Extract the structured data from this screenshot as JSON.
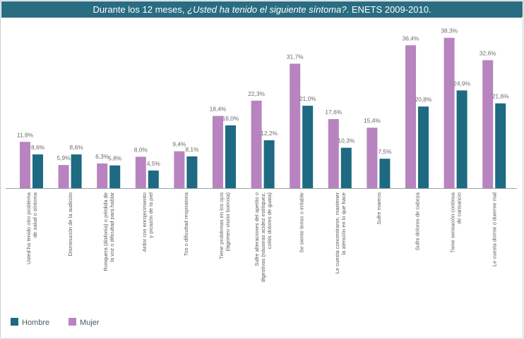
{
  "title": {
    "before": "Durante los 12 meses, ",
    "question": "¿Usted ha tenido el siguiente síntoma?",
    "after": ". ENETS 2009-2010."
  },
  "colors": {
    "mujer": "#b884c0",
    "hombre": "#1d6a82",
    "title_bg": "#2a6d82"
  },
  "legend": [
    {
      "name": "Hombre",
      "color": "#1d6a82"
    },
    {
      "name": "Mujer",
      "color": "#b884c0"
    }
  ],
  "chart_data": {
    "type": "bar",
    "title": "Durante los 12 meses, ¿Usted ha tenido el siguiente síntoma?. ENETS 2009-2010.",
    "xlabel": "",
    "ylabel": "",
    "ylim": [
      0,
      40
    ],
    "grid": false,
    "legend_position": "bottom-left",
    "categories": [
      [
        "Usted ha tenido otro problema",
        "de salud o síntoma"
      ],
      [
        "Disminución de la audición"
      ],
      [
        "Ronquera (disfonía) o pérdida de",
        "la voz o dificultad para hablar"
      ],
      [
        "Ardor con enrojecimiento",
        "y picazón de la piel"
      ],
      [
        "Tos o dificultad respiratoria"
      ],
      [
        "Tiene problemas en los ojos",
        "(lágrimeo visión borrosa)"
      ],
      [
        "Sufre alteraciones del apetito o",
        "digestivas (náuseas acidez estitiquez,",
        "colitis dolores de guata)"
      ],
      [
        "Se siente tenso o irritable"
      ],
      [
        "Le cuesta concentrarse, mantener",
        "la atención en lo que hace"
      ],
      [
        "Sufre mareos"
      ],
      [
        "Sufre dolores de cabeza"
      ],
      [
        "Tiene sensación continua",
        "de cansancio"
      ],
      [
        "Le cuesta dormir o duerme mal"
      ]
    ],
    "series": [
      {
        "name": "Mujer",
        "color": "#b884c0",
        "values": [
          11.8,
          5.9,
          6.3,
          8.0,
          9.4,
          18.4,
          22.3,
          31.7,
          17.6,
          15.4,
          36.4,
          38.3,
          32.6
        ],
        "labels": [
          "11,8%",
          "5,9%",
          "6,3%",
          "8,0%",
          "9,4%",
          "18,4%",
          "22,3%",
          "31,7%",
          "17,6%",
          "15,4%",
          "36,4%",
          "38,3%",
          "32,6%"
        ]
      },
      {
        "name": "Hombre",
        "color": "#1d6a82",
        "values": [
          8.6,
          8.6,
          5.8,
          4.5,
          8.1,
          16.0,
          12.2,
          21.0,
          10.3,
          7.5,
          20.8,
          24.9,
          21.6
        ],
        "labels": [
          "8,6%",
          "8,6%",
          "5,8%",
          "4,5%",
          "8,1%",
          "16,0%",
          "12,2%",
          "21,0%",
          "10,3%",
          "7,5%",
          "20,8%",
          "24,9%",
          "21,6%"
        ]
      }
    ]
  }
}
